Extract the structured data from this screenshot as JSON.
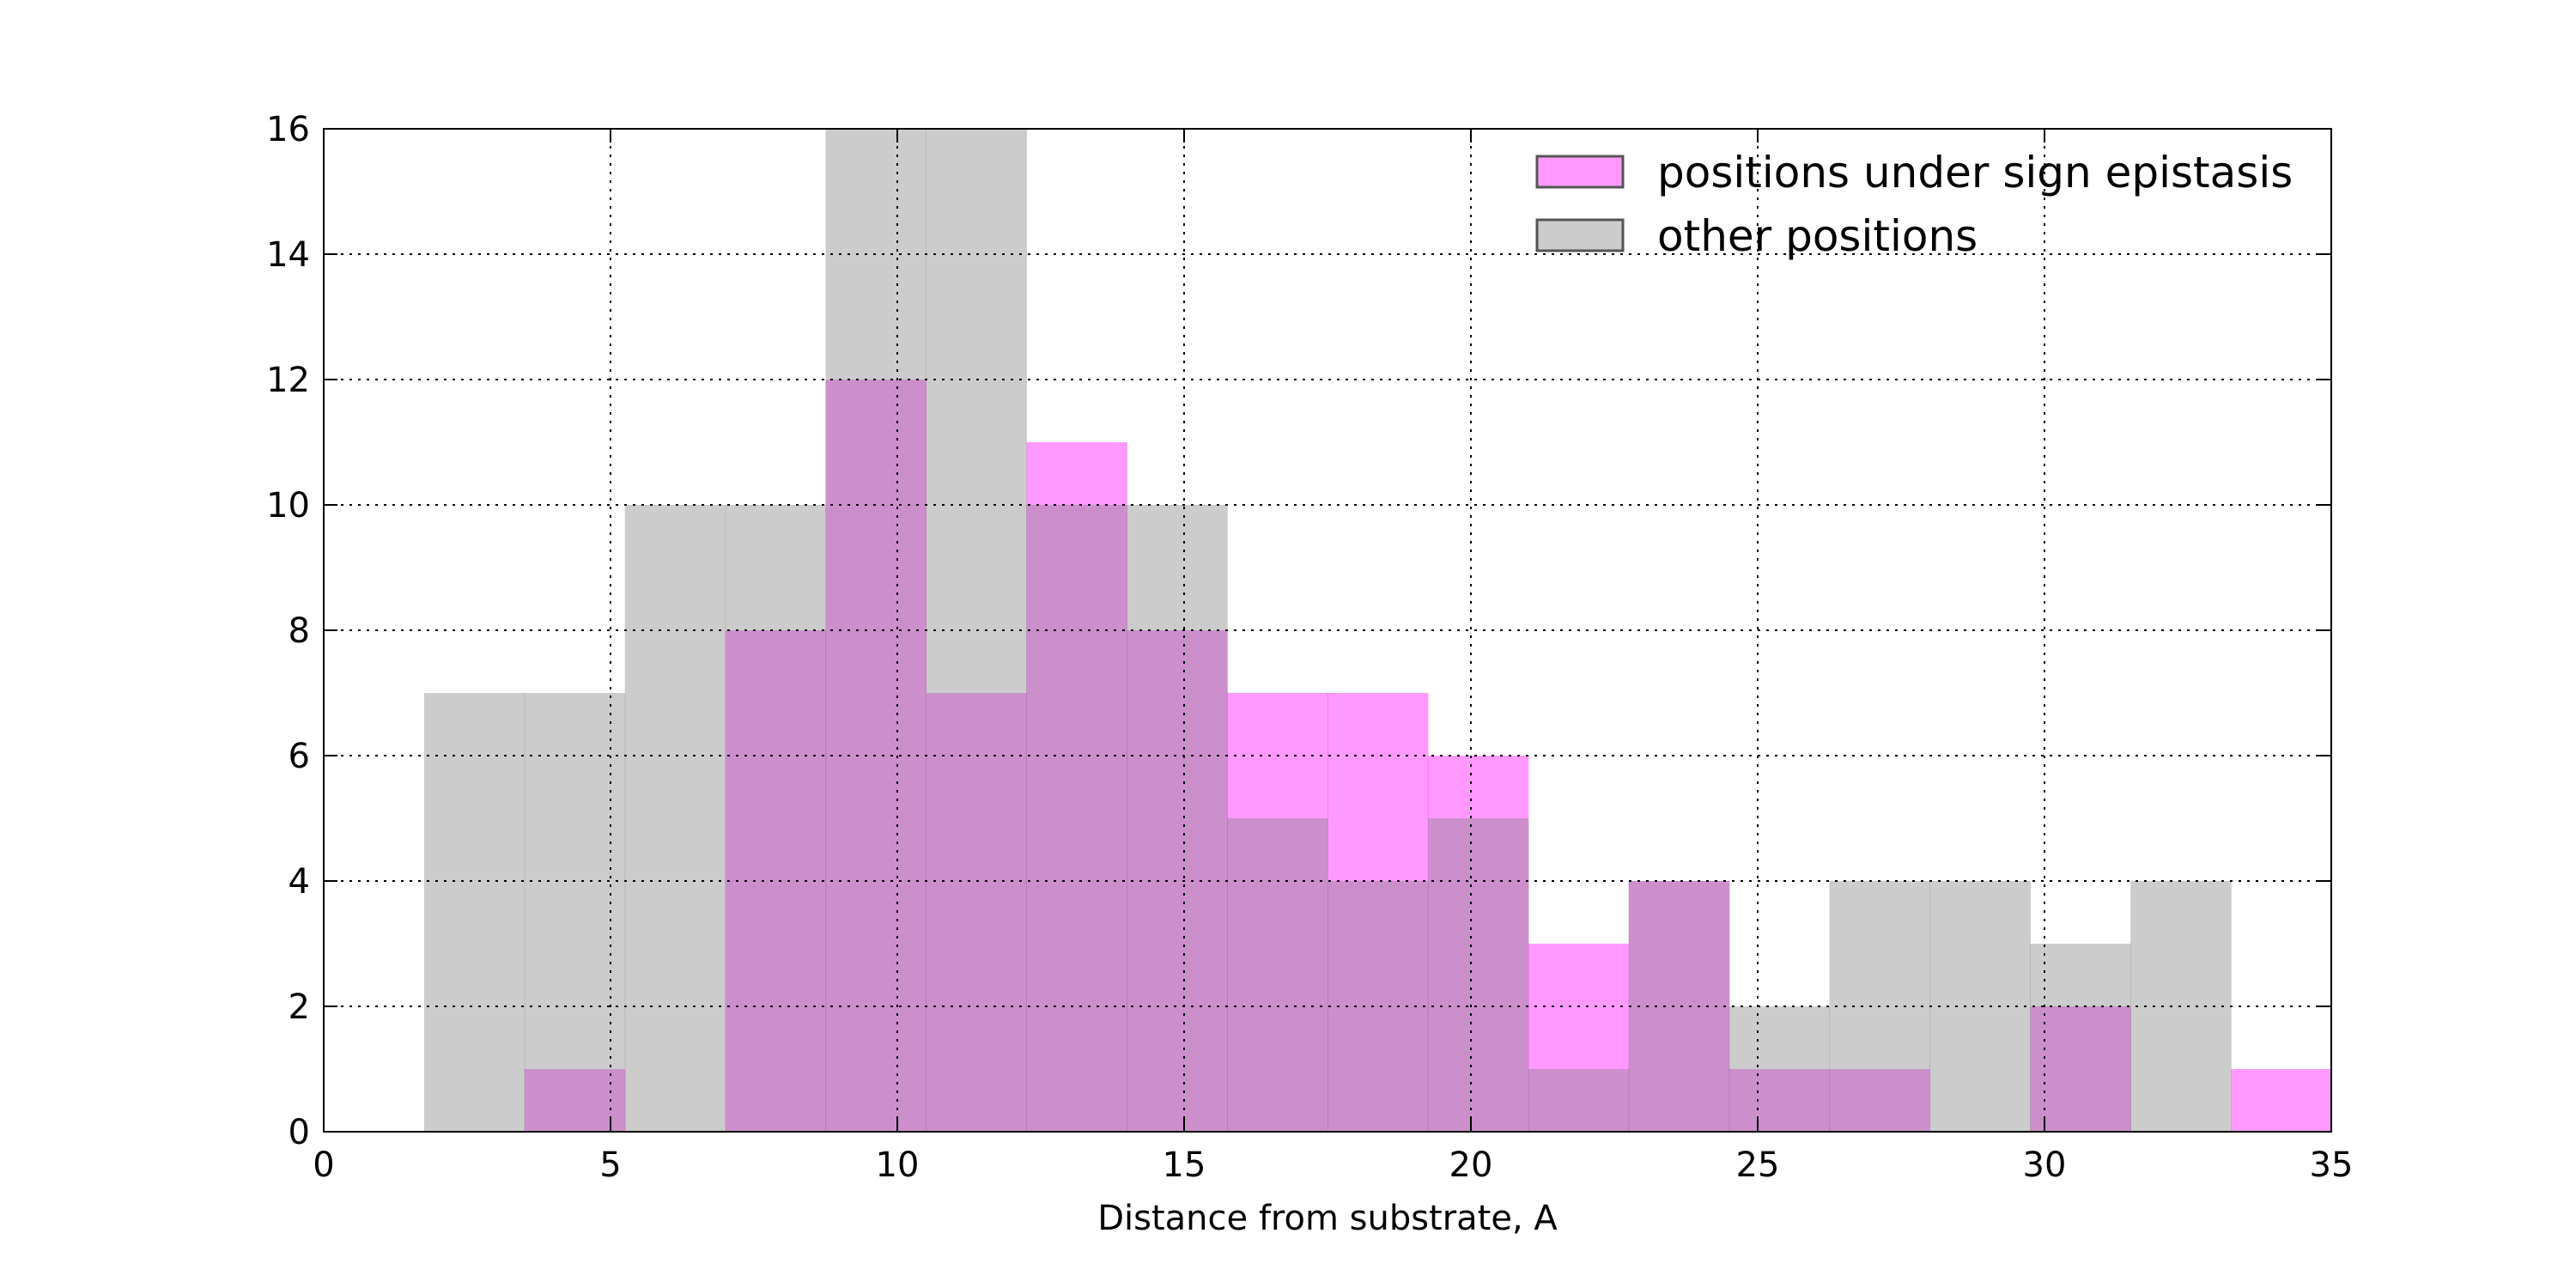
{
  "chart_data": {
    "type": "bar",
    "histogram": true,
    "bin_edges": [
      0,
      1.75,
      3.5,
      5.25,
      7,
      8.75,
      10.5,
      12.25,
      14,
      15.75,
      17.5,
      19.25,
      21,
      22.75,
      24.5,
      26.25,
      28,
      29.75,
      31.5,
      33.25,
      35
    ],
    "series": [
      {
        "name": "positions under sign epistasis",
        "color": "#ff00ff",
        "alpha": 0.4,
        "values": [
          0,
          0,
          1,
          0,
          8,
          12,
          7,
          11,
          8,
          7,
          7,
          6,
          3,
          4,
          1,
          1,
          0,
          2,
          0,
          1
        ]
      },
      {
        "name": "other positions",
        "color": "#808080",
        "alpha": 0.4,
        "values": [
          0,
          7,
          7,
          10,
          10,
          16,
          16,
          10,
          10,
          5,
          4,
          5,
          1,
          4,
          2,
          4,
          4,
          3,
          4,
          0
        ]
      }
    ],
    "xlabel": "Distance from substrate, A",
    "ylabel": "",
    "xlim": [
      0,
      35
    ],
    "ylim": [
      0,
      16
    ],
    "xticks": [
      0,
      5,
      10,
      15,
      20,
      25,
      30,
      35
    ],
    "yticks": [
      0,
      2,
      4,
      6,
      8,
      10,
      12,
      14,
      16
    ],
    "grid": true,
    "legend_position": "top-right"
  }
}
